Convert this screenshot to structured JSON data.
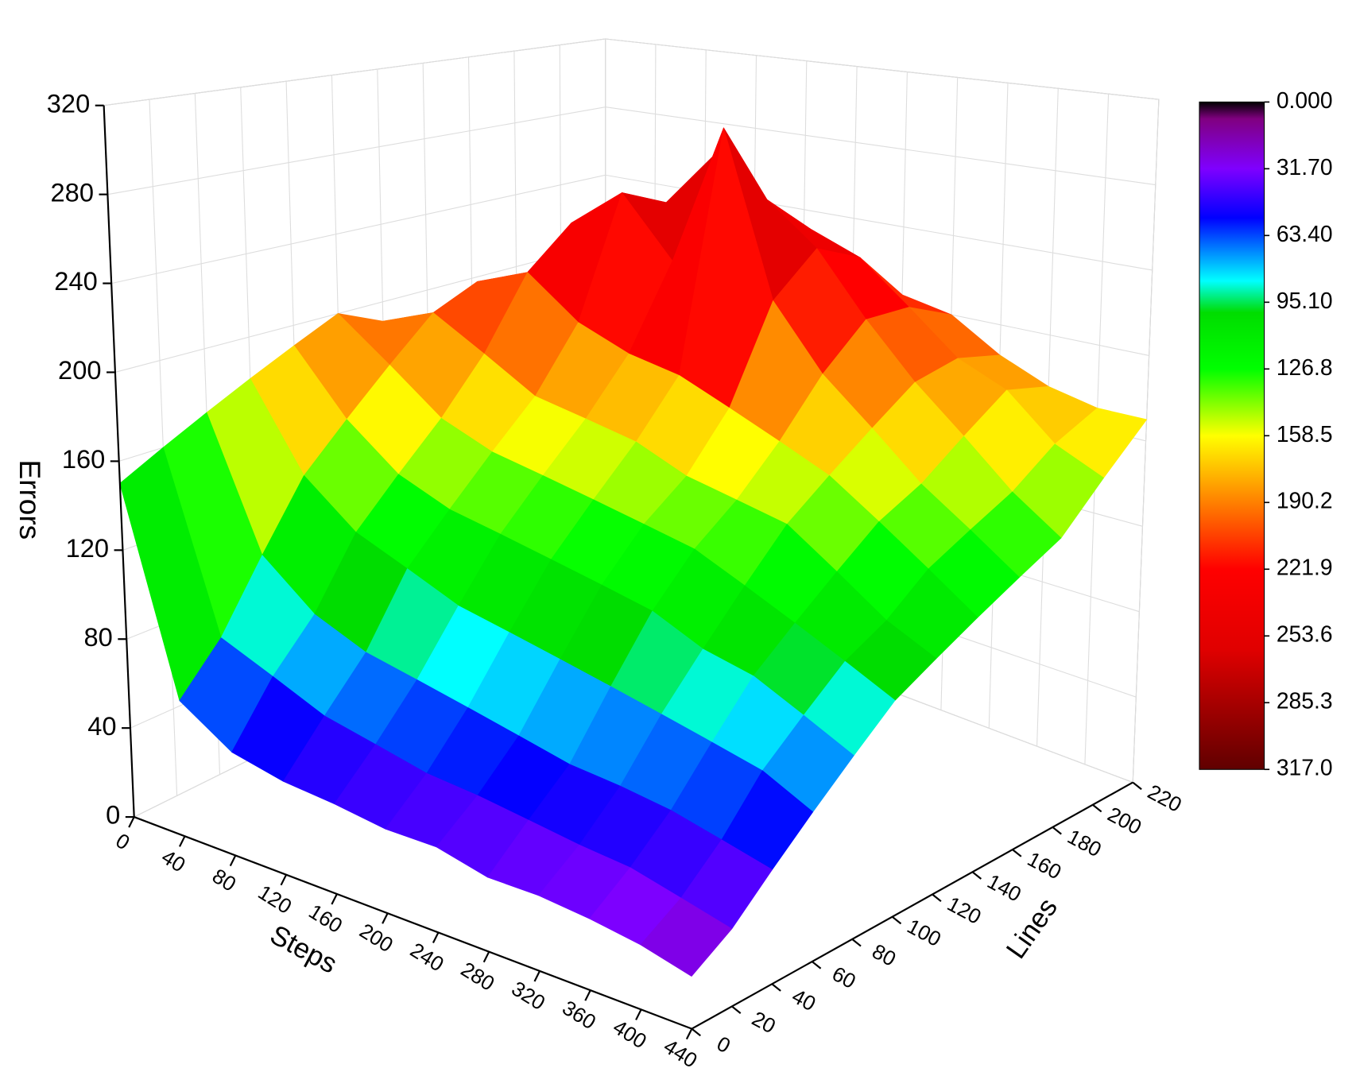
{
  "chart_data": {
    "type": "surface3d",
    "xlabel": "Steps",
    "ylabel": "Lines",
    "zlabel": "Errors",
    "x": [
      0,
      40,
      80,
      120,
      160,
      200,
      240,
      280,
      320,
      360,
      400,
      440
    ],
    "y": [
      0,
      20,
      40,
      60,
      80,
      100,
      120,
      140,
      160,
      180,
      200,
      220
    ],
    "z": [
      [
        150,
        60,
        45,
        40,
        38,
        35,
        35,
        30,
        30,
        28,
        25,
        20
      ],
      [
        160,
        80,
        70,
        60,
        55,
        50,
        48,
        45,
        42,
        40,
        35,
        30
      ],
      [
        170,
        110,
        90,
        80,
        75,
        70,
        65,
        60,
        58,
        55,
        50,
        45
      ],
      [
        180,
        140,
        120,
        110,
        100,
        95,
        90,
        85,
        80,
        75,
        70,
        60
      ],
      [
        190,
        160,
        140,
        130,
        125,
        120,
        115,
        110,
        100,
        95,
        85,
        75
      ],
      [
        200,
        180,
        160,
        150,
        145,
        140,
        135,
        130,
        120,
        110,
        100,
        90
      ],
      [
        190,
        200,
        185,
        170,
        165,
        160,
        150,
        145,
        140,
        125,
        110,
        100
      ],
      [
        180,
        210,
        220,
        200,
        190,
        185,
        175,
        165,
        155,
        140,
        125,
        110
      ],
      [
        170,
        200,
        240,
        260,
        230,
        300,
        220,
        190,
        170,
        150,
        135,
        120
      ],
      [
        160,
        190,
        230,
        250,
        280,
        260,
        240,
        210,
        185,
        165,
        145,
        130
      ],
      [
        150,
        180,
        210,
        230,
        250,
        240,
        230,
        210,
        190,
        180,
        160,
        150
      ],
      [
        140,
        170,
        200,
        210,
        220,
        215,
        205,
        200,
        185,
        175,
        170,
        170
      ]
    ],
    "xlim": [
      0,
      440
    ],
    "ylim": [
      0,
      220
    ],
    "zlim": [
      0,
      320
    ],
    "xticks": [
      0,
      40,
      80,
      120,
      160,
      200,
      240,
      280,
      320,
      360,
      400,
      440
    ],
    "yticks": [
      0,
      20,
      40,
      60,
      80,
      100,
      120,
      140,
      160,
      180,
      200,
      220
    ],
    "zticks": [
      0,
      40,
      80,
      120,
      160,
      200,
      240,
      280,
      320
    ],
    "grid": true,
    "clim": [
      0,
      317
    ],
    "cticks": [
      {
        "value": 0,
        "label": "0.000"
      },
      {
        "value": 31.7,
        "label": "31.70"
      },
      {
        "value": 63.4,
        "label": "63.40"
      },
      {
        "value": 95.1,
        "label": "95.10"
      },
      126.8,
      158.5,
      190.2,
      221.9,
      253.6,
      285.3,
      {
        "value": 317,
        "label": "317.0"
      }
    ],
    "colormap": [
      [
        0,
        "#000000"
      ],
      [
        8,
        "#800080"
      ],
      [
        31.7,
        "#7f00ff"
      ],
      [
        55,
        "#0000ff"
      ],
      [
        70,
        "#0080ff"
      ],
      [
        85,
        "#00ffff"
      ],
      [
        100,
        "#00dd00"
      ],
      [
        126.8,
        "#00ff00"
      ],
      [
        158.5,
        "#ffff00"
      ],
      [
        190.2,
        "#ff8000"
      ],
      [
        221.9,
        "#ff0000"
      ],
      [
        260,
        "#e00000"
      ],
      [
        317,
        "#600000"
      ]
    ]
  }
}
